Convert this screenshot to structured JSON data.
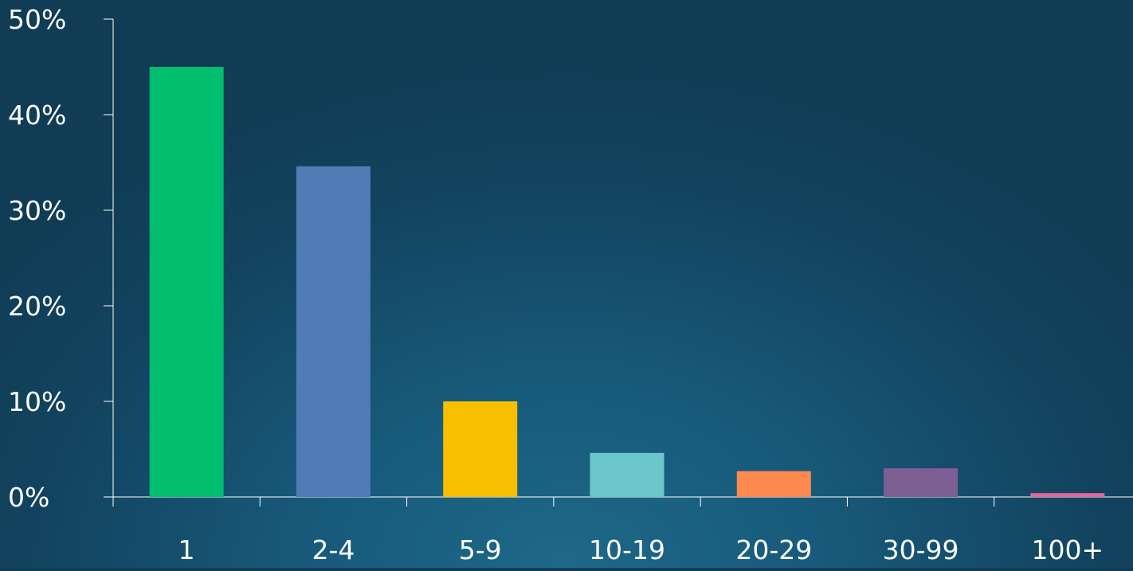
{
  "chart_data": {
    "type": "bar",
    "title": "",
    "xlabel": "",
    "ylabel": "",
    "categories": [
      "1",
      "2-4",
      "5-9",
      "10-19",
      "20-29",
      "30-99",
      "100+"
    ],
    "values": [
      45.0,
      34.6,
      10.0,
      4.6,
      2.7,
      3.0,
      0.4
    ],
    "ylim": [
      0,
      50
    ],
    "yticks": [
      0,
      10,
      20,
      30,
      40,
      50
    ],
    "ytick_labels": [
      "0%",
      "10%",
      "20%",
      "30%",
      "40%",
      "50%"
    ],
    "grid": false,
    "legend": "none",
    "colors": [
      "#00be6e",
      "#4f7cb5",
      "#f8be00",
      "#6cc7cb",
      "#ff8a50",
      "#7d5f93",
      "#e6669a"
    ],
    "axis_color": "#ffffff"
  }
}
